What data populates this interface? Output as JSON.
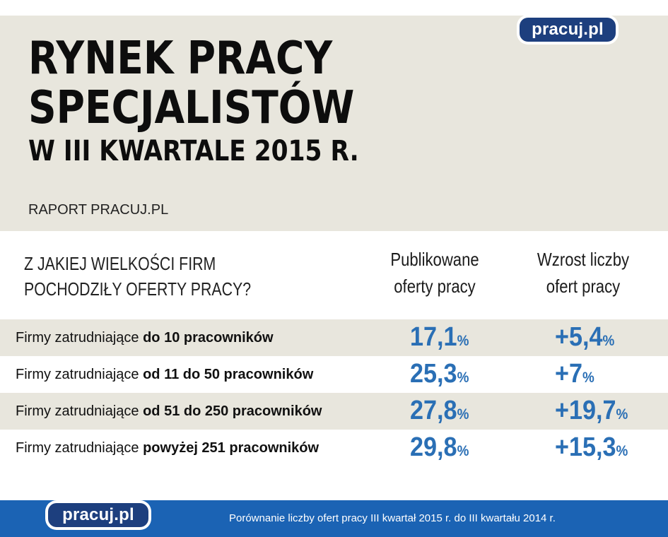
{
  "brand": {
    "logo_text": "pracuj.pl"
  },
  "header": {
    "title_line1": "RYNEK PRACY",
    "title_line2": "SPECJALISTÓW",
    "title_line3": "W III KWARTALE 2015 R.",
    "report_label": "RAPORT PRACUJ.PL"
  },
  "table": {
    "question_line1": "Z JAKIEJ WIELKOŚCI FIRM",
    "question_line2": "POCHODZIŁY OFERTY PRACY?",
    "col1_line1": "Publikowane",
    "col1_line2": "oferty pracy",
    "col2_line1": "Wzrost liczby",
    "col2_line2": "ofert pracy",
    "label_prefix": "Firmy zatrudniające",
    "percent_sign": "%",
    "rows": [
      {
        "category": "do 10 pracowników",
        "published": "17,1",
        "growth": "+5,4"
      },
      {
        "category": "od 11 do 50 pracowników",
        "published": "25,3",
        "growth": "+7"
      },
      {
        "category": "od 51 do 250 pracowników",
        "published": "27,8",
        "growth": "+19,7"
      },
      {
        "category": "powyżej 251 pracowników",
        "published": "29,8",
        "growth": "+15,3"
      }
    ]
  },
  "footer": {
    "note": "Porównanie liczby ofert pracy III kwartał 2015 r. do III kwartału 2014 r."
  },
  "colors": {
    "header_bg": "#e8e6dd",
    "accent_blue": "#2a6fb5",
    "logo_bg": "#1d3f7e",
    "footer_bg": "#1b63b4"
  }
}
